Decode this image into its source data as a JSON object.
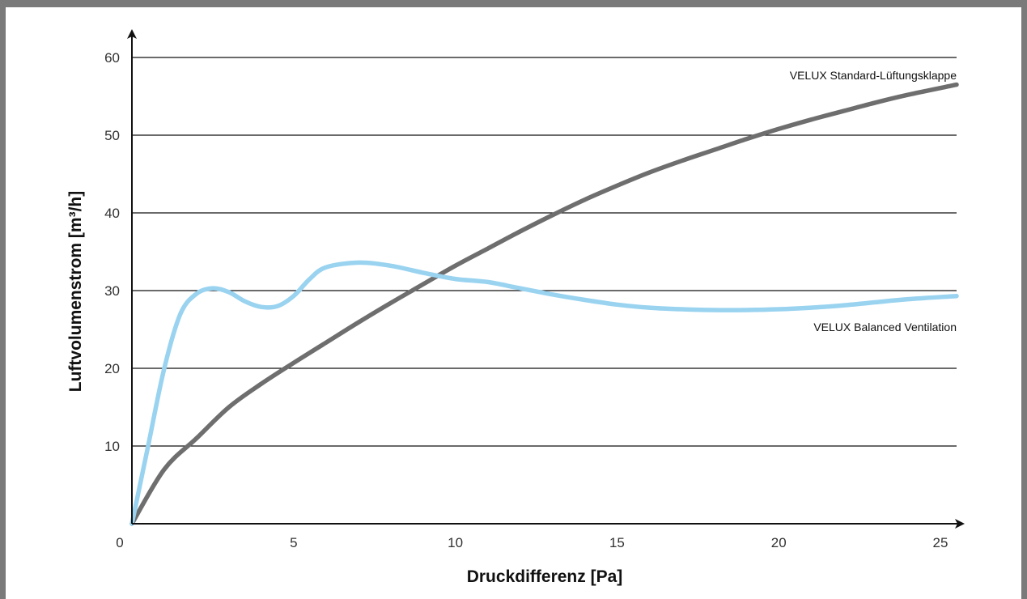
{
  "chart_data": {
    "type": "line",
    "xlabel": "Druckdifferenz [Pa]",
    "ylabel": "Luftvolumenstrom [m³/h]",
    "xlim": [
      0,
      25.5
    ],
    "ylim": [
      0,
      60
    ],
    "x_ticks": [
      "0",
      "5",
      "10",
      "15",
      "20",
      "25"
    ],
    "y_ticks": [
      "10",
      "20",
      "30",
      "40",
      "50",
      "60"
    ],
    "grid": "horizontal",
    "series": [
      {
        "name": "VELUX Standard-Lüftungsklappe",
        "color": "#6e6e6e",
        "points": [
          [
            0,
            0
          ],
          [
            1,
            7
          ],
          [
            2,
            11
          ],
          [
            3,
            15
          ],
          [
            4,
            18
          ],
          [
            5,
            20.7
          ],
          [
            6,
            23.3
          ],
          [
            7,
            25.9
          ],
          [
            8,
            28.4
          ],
          [
            9,
            30.8
          ],
          [
            10,
            33.2
          ],
          [
            11,
            35.4
          ],
          [
            12,
            37.6
          ],
          [
            13,
            39.7
          ],
          [
            14,
            41.7
          ],
          [
            15,
            43.5
          ],
          [
            16,
            45.2
          ],
          [
            17,
            46.7
          ],
          [
            18,
            48.1
          ],
          [
            19,
            49.5
          ],
          [
            20,
            50.8
          ],
          [
            21,
            52
          ],
          [
            22,
            53.1
          ],
          [
            23,
            54.2
          ],
          [
            24,
            55.2
          ],
          [
            25.5,
            56.5
          ]
        ]
      },
      {
        "name": "VELUX Balanced Ventilation",
        "color": "#99d3f0",
        "points": [
          [
            0,
            0
          ],
          [
            0.5,
            10
          ],
          [
            1,
            20
          ],
          [
            1.5,
            27
          ],
          [
            2,
            29.6
          ],
          [
            2.5,
            30.3
          ],
          [
            3,
            29.8
          ],
          [
            3.5,
            28.6
          ],
          [
            4,
            27.9
          ],
          [
            4.5,
            28
          ],
          [
            5,
            29.3
          ],
          [
            5.5,
            31.5
          ],
          [
            6,
            33
          ],
          [
            7,
            33.6
          ],
          [
            8,
            33.2
          ],
          [
            9,
            32.3
          ],
          [
            10,
            31.5
          ],
          [
            11,
            31.1
          ],
          [
            12,
            30.3
          ],
          [
            13,
            29.5
          ],
          [
            14,
            28.8
          ],
          [
            15,
            28.2
          ],
          [
            16,
            27.8
          ],
          [
            17,
            27.6
          ],
          [
            18,
            27.5
          ],
          [
            19,
            27.5
          ],
          [
            20,
            27.6
          ],
          [
            21,
            27.8
          ],
          [
            22,
            28.1
          ],
          [
            23,
            28.5
          ],
          [
            24,
            28.9
          ],
          [
            25.5,
            29.3
          ]
        ]
      }
    ]
  }
}
